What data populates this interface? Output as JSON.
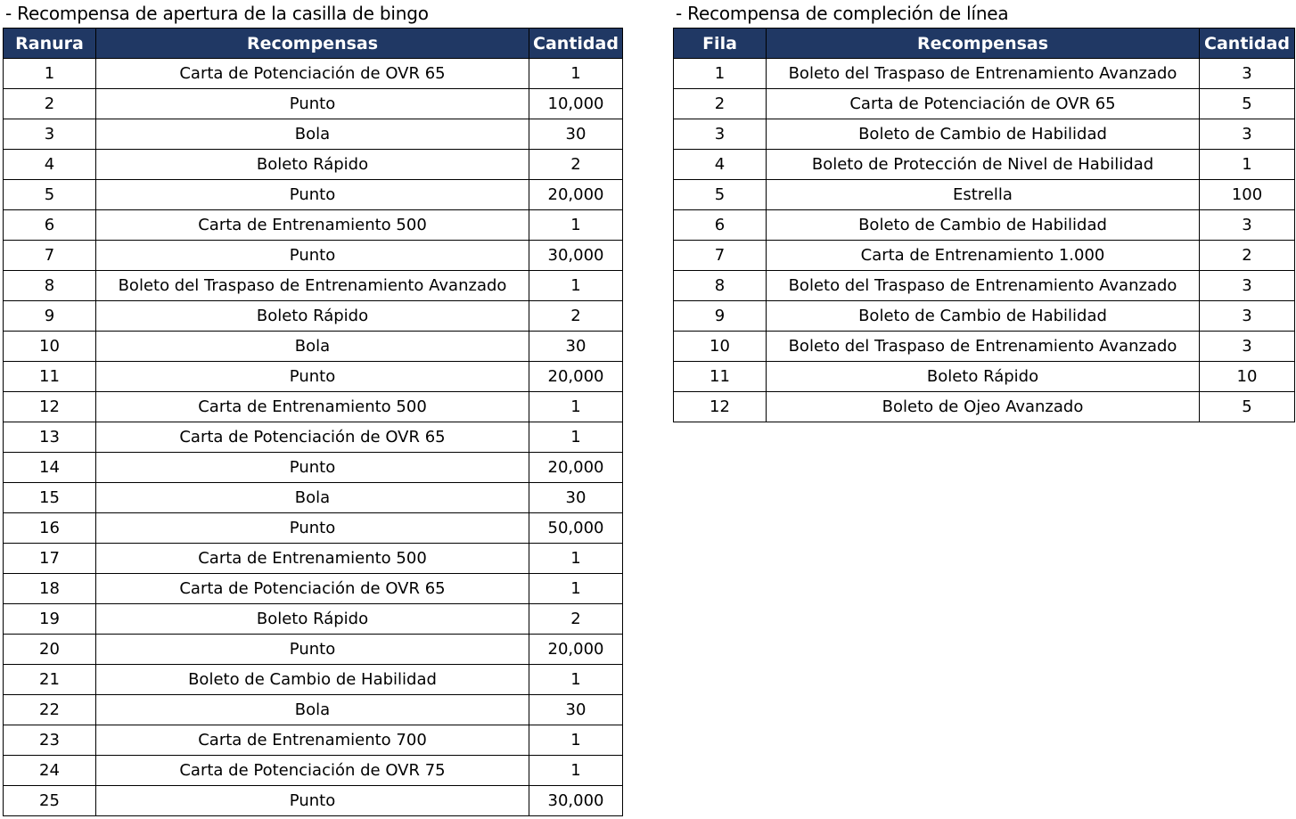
{
  "left": {
    "title": "- Recompensa de apertura de la casilla de bingo",
    "headers": [
      "Ranura",
      "Recompensas",
      "Cantidad"
    ],
    "rows": [
      [
        "1",
        "Carta de Potenciación de OVR 65",
        "1"
      ],
      [
        "2",
        "Punto",
        "10,000"
      ],
      [
        "3",
        "Bola",
        "30"
      ],
      [
        "4",
        "Boleto Rápido",
        "2"
      ],
      [
        "5",
        "Punto",
        "20,000"
      ],
      [
        "6",
        "Carta de Entrenamiento 500",
        "1"
      ],
      [
        "7",
        "Punto",
        "30,000"
      ],
      [
        "8",
        "Boleto del Traspaso de Entrenamiento Avanzado",
        "1"
      ],
      [
        "9",
        "Boleto Rápido",
        "2"
      ],
      [
        "10",
        "Bola",
        "30"
      ],
      [
        "11",
        "Punto",
        "20,000"
      ],
      [
        "12",
        "Carta de Entrenamiento 500",
        "1"
      ],
      [
        "13",
        "Carta de Potenciación de OVR 65",
        "1"
      ],
      [
        "14",
        "Punto",
        "20,000"
      ],
      [
        "15",
        "Bola",
        "30"
      ],
      [
        "16",
        "Punto",
        "50,000"
      ],
      [
        "17",
        "Carta de Entrenamiento 500",
        "1"
      ],
      [
        "18",
        "Carta de Potenciación de OVR 65",
        "1"
      ],
      [
        "19",
        "Boleto Rápido",
        "2"
      ],
      [
        "20",
        "Punto",
        "20,000"
      ],
      [
        "21",
        "Boleto de Cambio de Habilidad",
        "1"
      ],
      [
        "22",
        "Bola",
        "30"
      ],
      [
        "23",
        "Carta de Entrenamiento 700",
        "1"
      ],
      [
        "24",
        "Carta de Potenciación de OVR 75",
        "1"
      ],
      [
        "25",
        "Punto",
        "30,000"
      ]
    ]
  },
  "right": {
    "title": "- Recompensa de compleción de línea",
    "headers": [
      "Fila",
      "Recompensas",
      "Cantidad"
    ],
    "rows": [
      [
        "1",
        "Boleto del Traspaso de Entrenamiento Avanzado",
        "3"
      ],
      [
        "2",
        "Carta de Potenciación de OVR 65",
        "5"
      ],
      [
        "3",
        "Boleto de Cambio de Habilidad",
        "3"
      ],
      [
        "4",
        "Boleto de Protección de Nivel de Habilidad",
        "1"
      ],
      [
        "5",
        "Estrella",
        "100"
      ],
      [
        "6",
        "Boleto de Cambio de Habilidad",
        "3"
      ],
      [
        "7",
        "Carta de Entrenamiento 1.000",
        "2"
      ],
      [
        "8",
        "Boleto del Traspaso de Entrenamiento Avanzado",
        "3"
      ],
      [
        "9",
        "Boleto de Cambio de Habilidad",
        "3"
      ],
      [
        "10",
        "Boleto del Traspaso de Entrenamiento Avanzado",
        "3"
      ],
      [
        "11",
        "Boleto Rápido",
        "10"
      ],
      [
        "12",
        "Boleto de Ojeo Avanzado",
        "5"
      ]
    ]
  },
  "colors": {
    "header_bg": "#203864",
    "header_text": "#ffffff"
  }
}
